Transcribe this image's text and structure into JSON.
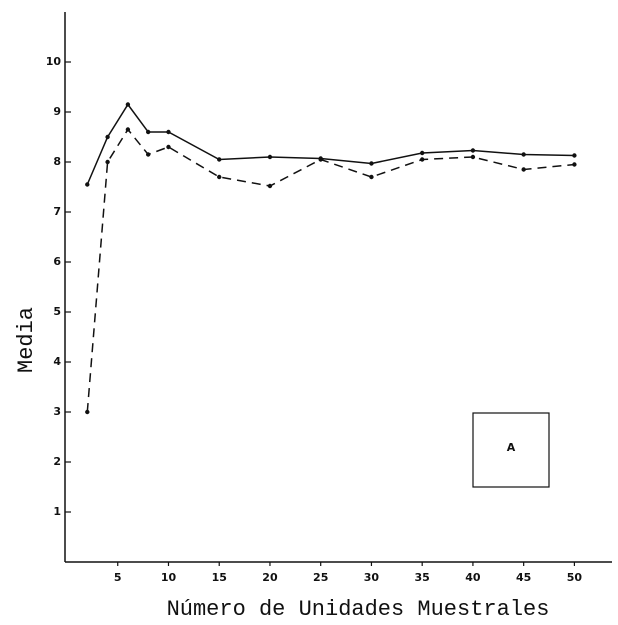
{
  "chart_data": {
    "type": "line",
    "x_label": "Número de Unidades Muestrales",
    "y_label": "Media",
    "annotation": "A",
    "x": [
      2,
      4,
      6,
      8,
      10,
      15,
      20,
      25,
      30,
      35,
      40,
      45,
      50
    ],
    "series": [
      {
        "color": "#111111",
        "style": "solid",
        "values": [
          7.55,
          8.5,
          9.15,
          8.6,
          8.6,
          8.05,
          8.1,
          8.07,
          7.97,
          8.18,
          8.23,
          8.15,
          8.13
        ]
      },
      {
        "color": "#111111",
        "style": "dashed",
        "values": [
          3.0,
          8.0,
          8.65,
          8.15,
          8.3,
          7.7,
          7.52,
          8.05,
          7.7,
          8.05,
          8.1,
          7.85,
          7.95
        ]
      }
    ],
    "xlim": [
      0,
      54
    ],
    "ylim": [
      0,
      11
    ],
    "xticks": [
      5,
      10,
      15,
      20,
      25,
      30,
      35,
      40,
      45,
      50
    ],
    "yticks": [
      1,
      2,
      3,
      4,
      5,
      6,
      7,
      8,
      9,
      10
    ],
    "grid": false
  }
}
